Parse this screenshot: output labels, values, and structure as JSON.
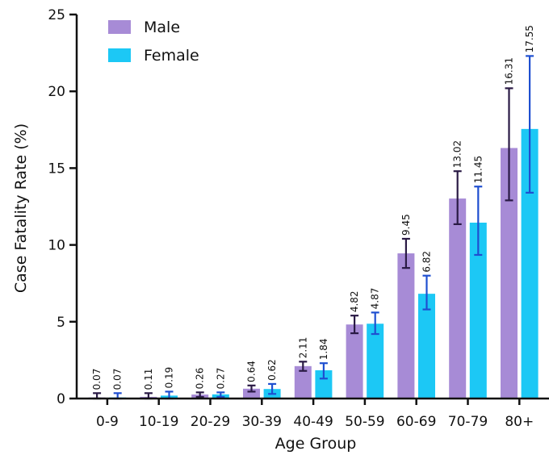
{
  "chart_data": {
    "type": "bar",
    "xlabel": "Age Group",
    "ylabel": "Case Fatality  Rate  (%)",
    "ylim": [
      0,
      25
    ],
    "yticks": [
      0,
      5,
      10,
      15,
      20,
      25
    ],
    "categories": [
      "0-9",
      "10-19",
      "20-29",
      "30-39",
      "40-49",
      "50-59",
      "60-69",
      "70-79",
      "80+"
    ],
    "legend_position": "top-left",
    "series": [
      {
        "name": "Male",
        "color": "#a78bd6",
        "error_color": "#2a1a45",
        "values": [
          0.07,
          0.11,
          0.26,
          0.64,
          2.11,
          4.82,
          9.45,
          13.02,
          16.31
        ],
        "labels": [
          "0.07",
          "0.11",
          "0.26",
          "0.64",
          "2.11",
          "4.82",
          "9.45",
          "13.02",
          "16.31"
        ],
        "error_low": [
          0.0,
          0.0,
          0.1,
          0.45,
          1.8,
          4.25,
          8.5,
          11.35,
          12.9
        ],
        "error_high": [
          0.35,
          0.35,
          0.4,
          0.85,
          2.4,
          5.4,
          10.4,
          14.8,
          20.2
        ]
      },
      {
        "name": "Female",
        "color": "#1cc8f5",
        "error_color": "#1f4fd0",
        "values": [
          0.07,
          0.19,
          0.27,
          0.62,
          1.84,
          4.87,
          6.82,
          11.45,
          17.55
        ],
        "labels": [
          "0.07",
          "0.19",
          "0.27",
          "0.62",
          "1.84",
          "4.87",
          "6.82",
          "11.45",
          "17.55"
        ],
        "error_low": [
          0.0,
          0.0,
          0.1,
          0.3,
          1.3,
          4.2,
          5.8,
          9.35,
          13.4
        ],
        "error_high": [
          0.35,
          0.45,
          0.4,
          0.95,
          2.3,
          5.6,
          8.0,
          13.8,
          22.3
        ]
      }
    ]
  }
}
